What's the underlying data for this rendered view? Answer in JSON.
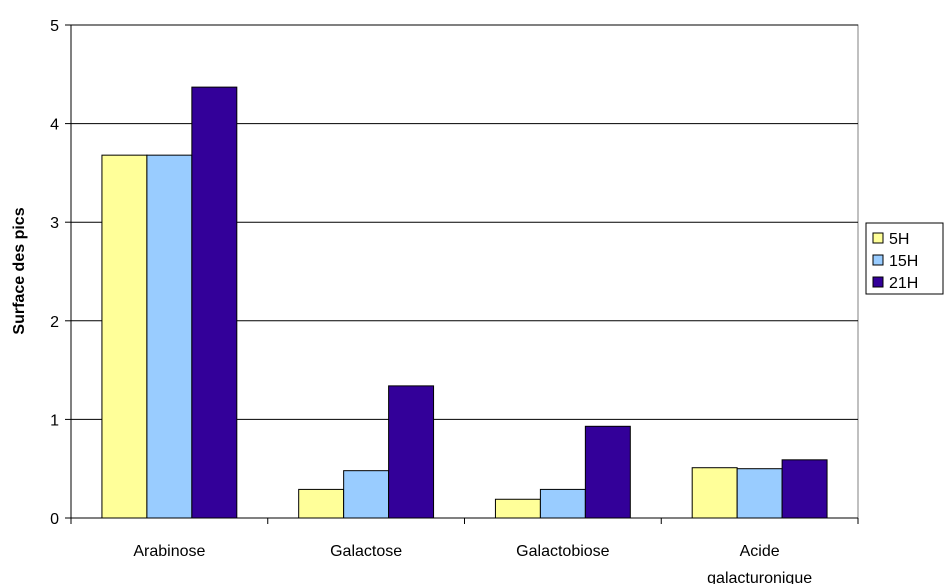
{
  "chart_data": {
    "type": "bar",
    "title": "",
    "xlabel": "",
    "ylabel": "Surface des pics",
    "ylim": [
      0,
      5
    ],
    "yticks": [
      0,
      1,
      2,
      3,
      4,
      5
    ],
    "grid": true,
    "legend_position": "right",
    "categories": [
      [
        "Arabinose"
      ],
      [
        "Galactose"
      ],
      [
        "Galactobiose"
      ],
      [
        "Acide",
        "galacturonique"
      ]
    ],
    "series": [
      {
        "name": "5H",
        "color": "#ffff99",
        "values": [
          3.68,
          0.29,
          0.19,
          0.51
        ]
      },
      {
        "name": "15H",
        "color": "#99ccff",
        "values": [
          3.68,
          0.48,
          0.29,
          0.5
        ]
      },
      {
        "name": "21H",
        "color": "#330099",
        "values": [
          4.37,
          1.34,
          0.93,
          0.59
        ]
      }
    ]
  }
}
